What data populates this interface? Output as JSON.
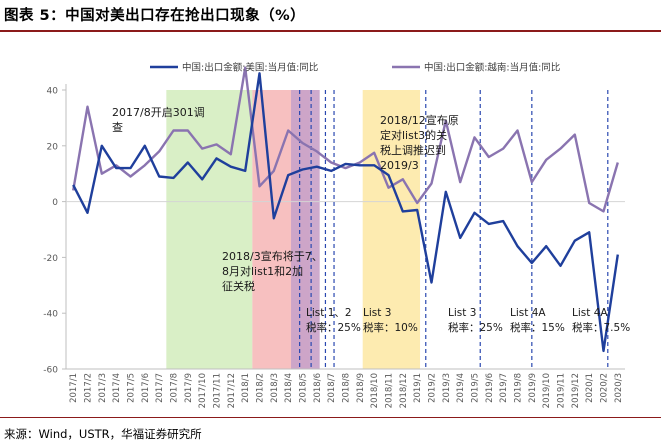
{
  "page": {
    "title": "图表 5：中国对美出口存在抢出口现象（%）",
    "source": "来源：Wind，USTR，华福证券研究所"
  },
  "colors": {
    "us_line": "#1f3f9c",
    "vn_line": "#8a74b0",
    "green_band": "#d9efc6",
    "red_band": "#f7c0c0",
    "purple_band": "#c9a3c9",
    "yellow_band": "#fdebb0",
    "dashed_line": "#2a48b0",
    "rule": "#8b1a1a"
  },
  "chart_data": {
    "type": "line",
    "title": "",
    "xlabel": "",
    "ylabel": "",
    "ylim": [
      -60,
      40
    ],
    "yticks": [
      -60,
      -40,
      -20,
      0,
      20,
      40
    ],
    "grid": false,
    "categories": [
      "2017/1",
      "2017/2",
      "2017/3",
      "2017/4",
      "2017/5",
      "2017/6",
      "2017/7",
      "2017/8",
      "2017/9",
      "2017/10",
      "2017/11",
      "2017/12",
      "2018/1",
      "2018/2",
      "2018/3",
      "2018/4",
      "2018/5",
      "2018/6",
      "2018/7",
      "2018/8",
      "2018/9",
      "2018/10",
      "2018/11",
      "2018/12",
      "2019/1",
      "2019/2",
      "2019/3",
      "2019/4",
      "2019/5",
      "2019/6",
      "2019/7",
      "2019/8",
      "2019/9",
      "2019/10",
      "2019/11",
      "2019/12",
      "2020/1",
      "2020/2",
      "2020/3"
    ],
    "series": [
      {
        "name": "中国:出口金额:美国:当月值:同比",
        "values": [
          6,
          -4,
          20,
          12,
          12,
          20,
          9,
          8.5,
          14,
          8,
          15.5,
          12.5,
          11,
          46,
          -6,
          9.5,
          11.5,
          12.5,
          11,
          13.5,
          13,
          13,
          9.5,
          -3.5,
          -3,
          -29,
          3.5,
          -13,
          -4,
          -8,
          -7,
          -16,
          -22,
          -16,
          -23,
          -14,
          -11,
          -53.5,
          -19
        ]
      },
      {
        "name": "中国:出口金额:越南:当月值:同比",
        "values": [
          4,
          34,
          10,
          13,
          9,
          13,
          18,
          25.5,
          25.5,
          19,
          20.5,
          17,
          48,
          5.5,
          11,
          25.5,
          21,
          18,
          14,
          12,
          14,
          17.5,
          5,
          8,
          -0.5,
          6.5,
          29,
          7,
          23,
          16,
          19,
          25.5,
          7,
          15,
          19,
          24,
          -0.5,
          -3.5,
          14
        ]
      }
    ],
    "bands": [
      {
        "name": "green",
        "from": 6.5,
        "to": 12.5
      },
      {
        "name": "red",
        "from": 12.5,
        "to": 16.5
      },
      {
        "name": "purple",
        "from": 15.2,
        "to": 17.2
      },
      {
        "name": "yellow",
        "from": 20.2,
        "to": 24.2
      }
    ],
    "dashed_x": [
      15.8,
      16.6,
      17.6,
      18.2,
      24.6,
      28.4,
      32.0,
      37.3
    ],
    "annotations": [
      {
        "id": "a1",
        "lines": [
          "2017/8开启301调",
          "查"
        ]
      },
      {
        "id": "a2",
        "lines": [
          "2018/3宣布将于7、",
          "8月对list1和2加",
          "征关税"
        ]
      },
      {
        "id": "a3",
        "lines": [
          "2018/12宣布原",
          "定对list3的关",
          "税上调推迟到",
          "2019/3"
        ]
      },
      {
        "id": "a4",
        "lines": [
          "List 1、2",
          "税率：25%"
        ]
      },
      {
        "id": "a5",
        "lines": [
          "List 3",
          "税率：10%"
        ]
      },
      {
        "id": "a6",
        "lines": [
          "List 3",
          "税率：25%"
        ]
      },
      {
        "id": "a7",
        "lines": [
          "List 4A",
          "税率：15%"
        ]
      },
      {
        "id": "a8",
        "lines": [
          "List 4A",
          "税率：7.5%"
        ]
      }
    ]
  }
}
